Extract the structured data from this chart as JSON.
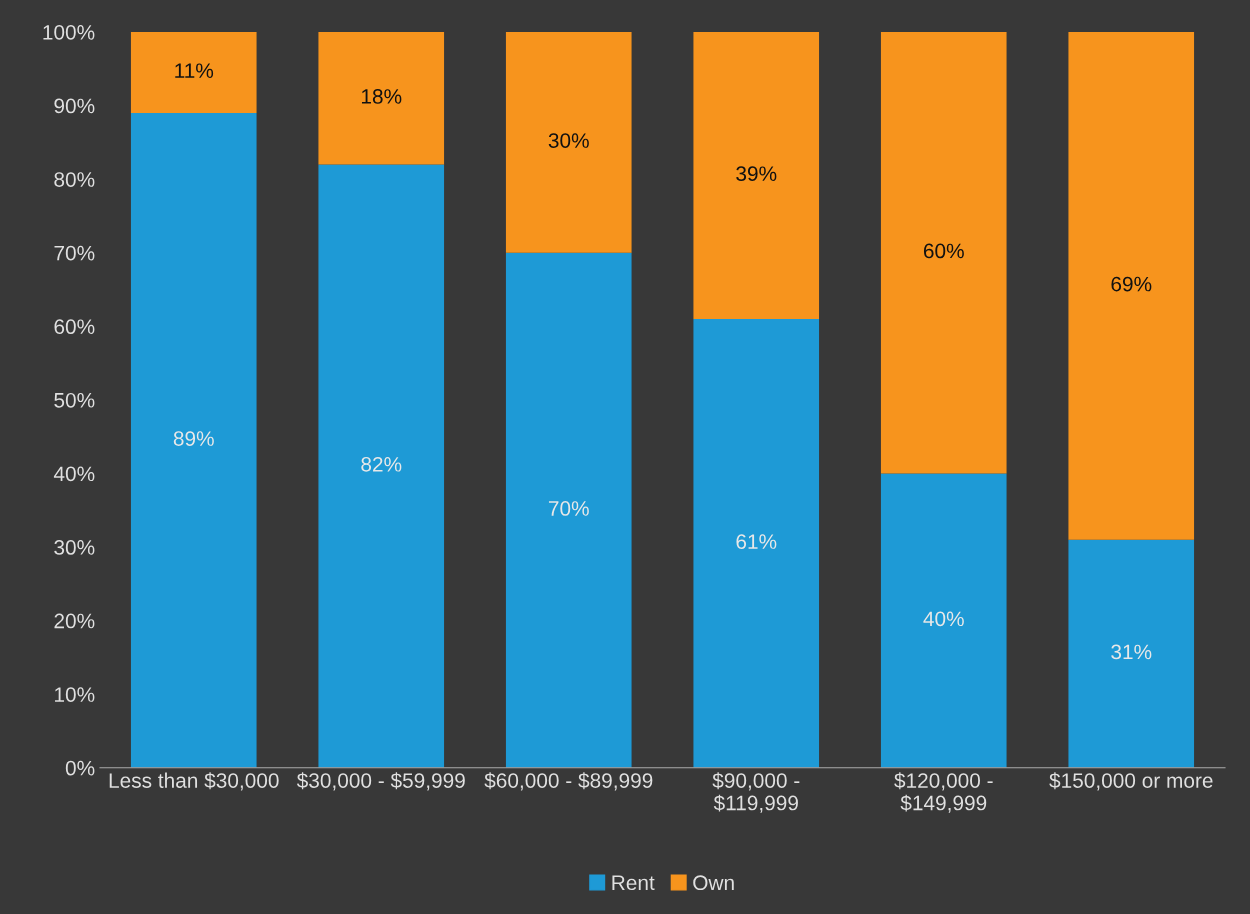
{
  "chart_data": {
    "type": "bar",
    "stacked": true,
    "categories": [
      "Less than $30,000",
      "$30,000 - $59,999",
      "$60,000 - $89,999",
      "$90,000 -\n$119,999",
      "$120,000 -\n$149,999",
      "$150,000 or more"
    ],
    "series": [
      {
        "name": "Rent",
        "color": "#1e9ad6",
        "values": [
          89,
          82,
          70,
          61,
          40,
          31
        ],
        "value_labels": [
          "89%",
          "82%",
          "70%",
          "61%",
          "40%",
          "31%"
        ]
      },
      {
        "name": "Own",
        "color": "#f7941d",
        "values": [
          11,
          18,
          30,
          39,
          60,
          69
        ],
        "value_labels": [
          "11%",
          "18%",
          "30%",
          "39%",
          "60%",
          "69%"
        ]
      }
    ],
    "ylim": [
      0,
      100
    ],
    "yticks": [
      {
        "value": 0,
        "label": "0%"
      },
      {
        "value": 10,
        "label": "10%"
      },
      {
        "value": 20,
        "label": "20%"
      },
      {
        "value": 30,
        "label": "30%"
      },
      {
        "value": 40,
        "label": "40%"
      },
      {
        "value": 50,
        "label": "50%"
      },
      {
        "value": 60,
        "label": "60%"
      },
      {
        "value": 70,
        "label": "70%"
      },
      {
        "value": 80,
        "label": "80%"
      },
      {
        "value": 90,
        "label": "90%"
      },
      {
        "value": 100,
        "label": "100%"
      }
    ],
    "grid": false,
    "legend": "bottom"
  }
}
